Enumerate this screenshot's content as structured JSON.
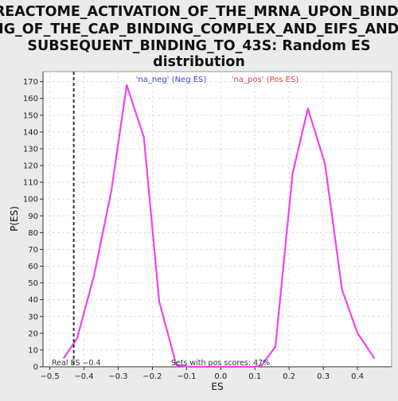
{
  "chart_data": {
    "type": "line",
    "title_lines": [
      "REACTOME_ACTIVATION_OF_THE_MRNA_UPON_BINDI",
      "NG_OF_THE_CAP_BINDING_COMPLEX_AND_EIFS_AND_",
      "SUBSEQUENT_BINDING_TO_43S: Random ES",
      "distribution"
    ],
    "xlabel": "ES",
    "ylabel": "P(ES)",
    "xlim": [
      -0.52,
      0.5
    ],
    "ylim": [
      0,
      176
    ],
    "xticks": [
      -0.5,
      -0.4,
      -0.3,
      -0.2,
      -0.1,
      0.0,
      0.1,
      0.2,
      0.3,
      0.4
    ],
    "xtick_labels": [
      "−0.5",
      "−0.4",
      "−0.3",
      "−0.2",
      "−0.1",
      "0.0",
      "0.1",
      "0.2",
      "0.3",
      "0.4"
    ],
    "yticks": [
      0,
      10,
      20,
      30,
      40,
      50,
      60,
      70,
      80,
      90,
      100,
      110,
      120,
      130,
      140,
      150,
      160,
      170
    ],
    "grid": true,
    "legend": [
      {
        "label": "'na_neg' (Neg ES)",
        "color": "#4040e0"
      },
      {
        "label": "'na_pos' (Pos ES)",
        "color": "#e04040"
      }
    ],
    "series": [
      {
        "color": "#ee44ee",
        "x": [
          -0.46,
          -0.42,
          -0.37,
          -0.32,
          -0.275,
          -0.225,
          -0.18,
          -0.13,
          -0.09,
          0.0
        ],
        "y": [
          5,
          17,
          55,
          105,
          168,
          137,
          39,
          1,
          0,
          0
        ]
      },
      {
        "color": "#ee44ee",
        "x": [
          0.0,
          0.1,
          0.12,
          0.16,
          0.21,
          0.255,
          0.305,
          0.355,
          0.4,
          0.45
        ],
        "y": [
          0,
          0,
          1,
          12,
          115,
          154,
          121,
          46,
          20,
          5
        ]
      }
    ],
    "real_es": {
      "x": -0.43,
      "label": "Real ES −0.4",
      "color": "#333333"
    },
    "annotation": "Sets with pos scores: 47%"
  }
}
